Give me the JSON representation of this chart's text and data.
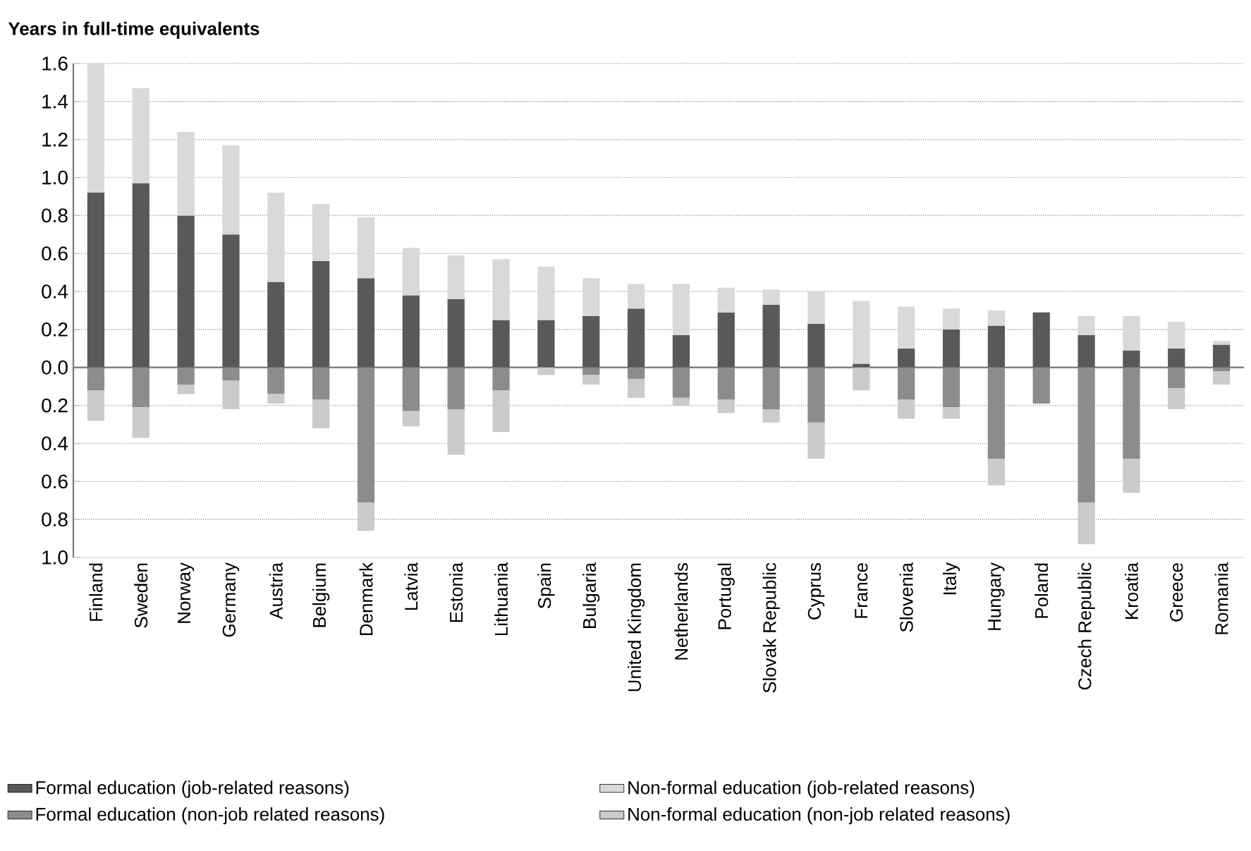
{
  "chart_data": {
    "type": "bar",
    "stacked": true,
    "ylabel": "Years in full-time equivalents",
    "categories": [
      "Finland",
      "Sweden",
      "Norway",
      "Germany",
      "Austria",
      "Belgium",
      "Denmark",
      "Latvia",
      "Estonia",
      "Lithuania",
      "Spain",
      "Bulgaria",
      "United Kingdom",
      "Netherlands",
      "Portugal",
      "Slovak Republic",
      "Cyprus",
      "France",
      "Slovenia",
      "Italy",
      "Hungary",
      "Poland",
      "Czech Republic",
      "Kroatia",
      "Greece",
      "Romania"
    ],
    "series": [
      {
        "name": "Formal education (job-related reasons)",
        "color": "#595959",
        "values": [
          0.92,
          0.97,
          0.8,
          0.7,
          0.45,
          0.56,
          0.47,
          0.38,
          0.36,
          0.25,
          0.25,
          0.27,
          0.31,
          0.17,
          0.29,
          0.33,
          0.23,
          0.02,
          0.1,
          0.2,
          0.22,
          0.29,
          0.17,
          0.09,
          0.1,
          0.12
        ]
      },
      {
        "name": "Non-formal education (job-related reasons)",
        "color": "#d9d9d9",
        "values": [
          0.68,
          0.5,
          0.44,
          0.47,
          0.47,
          0.3,
          0.32,
          0.25,
          0.23,
          0.32,
          0.28,
          0.2,
          0.13,
          0.27,
          0.13,
          0.08,
          0.17,
          0.33,
          0.22,
          0.11,
          0.08,
          0,
          0.1,
          0.18,
          0.14,
          0.02
        ]
      },
      {
        "name": "Formal education (non-job related reasons)",
        "color": "#8c8c8c",
        "values": [
          -0.12,
          -0.21,
          -0.09,
          -0.07,
          -0.14,
          -0.17,
          -0.71,
          -0.23,
          -0.22,
          -0.12,
          0,
          -0.04,
          -0.06,
          -0.16,
          -0.17,
          -0.22,
          -0.29,
          0,
          -0.17,
          -0.21,
          -0.48,
          -0.19,
          -0.71,
          -0.48,
          -0.11,
          -0.02
        ]
      },
      {
        "name": "Non-formal education (non-job related reasons)",
        "color": "#cbcbcb",
        "values": [
          -0.16,
          -0.16,
          -0.05,
          -0.15,
          -0.05,
          -0.15,
          -0.15,
          -0.08,
          -0.24,
          -0.22,
          -0.04,
          -0.05,
          -0.1,
          -0.04,
          -0.07,
          -0.07,
          -0.19,
          -0.12,
          -0.1,
          -0.06,
          -0.14,
          0,
          -0.22,
          -0.18,
          -0.11,
          -0.07
        ]
      }
    ],
    "ylim": [
      -1.0,
      1.6
    ],
    "yticks": [
      {
        "value": -1.0,
        "label": "1.0"
      },
      {
        "value": -0.8,
        "label": "0.8"
      },
      {
        "value": -0.6,
        "label": "0.6"
      },
      {
        "value": -0.4,
        "label": "0.4"
      },
      {
        "value": -0.2,
        "label": "0.2"
      },
      {
        "value": 0.0,
        "label": "0.0"
      },
      0.2,
      0.4,
      0.6,
      0.8,
      {
        "value": 1.0,
        "label": "1.0"
      },
      1.2,
      1.4,
      1.6
    ],
    "grid": "y",
    "legend": "bottom"
  }
}
